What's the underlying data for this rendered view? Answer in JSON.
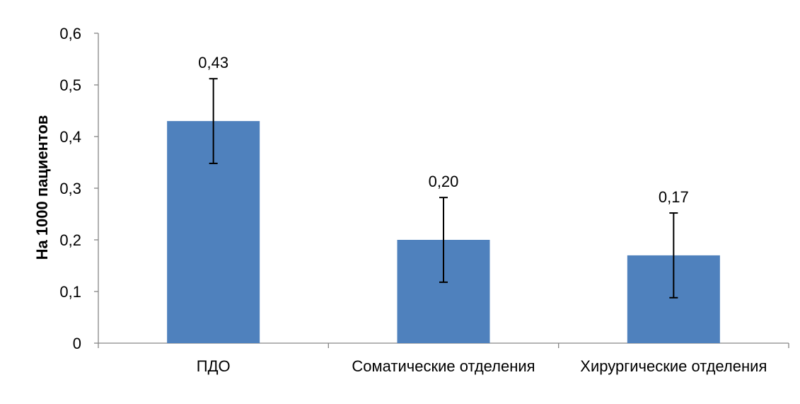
{
  "chart_data": {
    "type": "bar",
    "categories": [
      "ПДО",
      "Соматические отделения",
      "Хирургические отделения"
    ],
    "values": [
      0.43,
      0.2,
      0.17
    ],
    "data_labels": [
      "0,43",
      "0,20",
      "0,17"
    ],
    "error_bars": [
      {
        "low": 0.348,
        "high": 0.512
      },
      {
        "low": 0.118,
        "high": 0.282
      },
      {
        "low": 0.088,
        "high": 0.252
      }
    ],
    "title": "",
    "xlabel": "",
    "ylabel": "На 1000 пациентов",
    "ylim": [
      0,
      0.6
    ],
    "yticks": [
      0,
      0.1,
      0.2,
      0.3,
      0.4,
      0.5,
      0.6
    ],
    "ytick_labels": [
      "0",
      "0,1",
      "0,2",
      "0,3",
      "0,4",
      "0,5",
      "0,6"
    ],
    "grid": false,
    "legend": "none",
    "colors": {
      "bar": "#4f81bd",
      "axis": "#868686",
      "error_bar": "#000000",
      "text": "#000000"
    }
  }
}
